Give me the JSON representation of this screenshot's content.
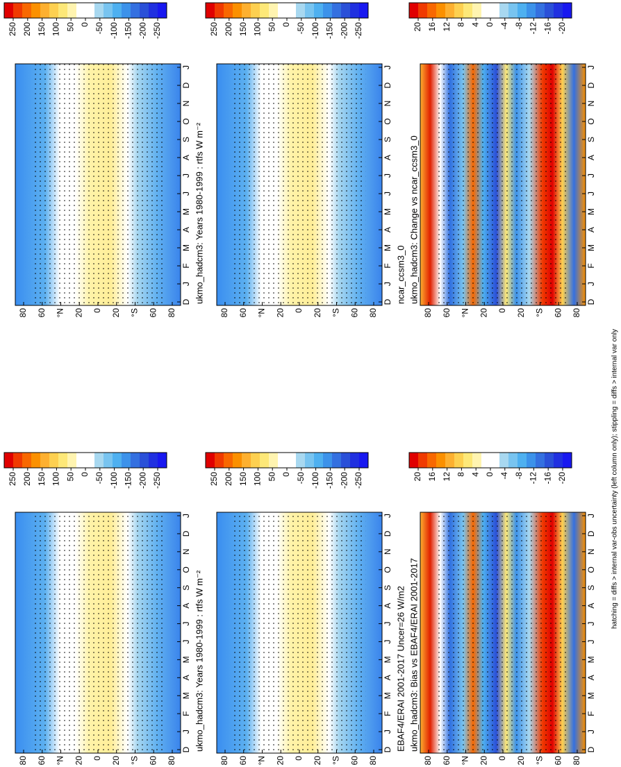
{
  "panels": [
    {
      "title": "ukmo_hadcm3: Years 1980-1999 : rtfs W m⁻²",
      "scale": "absolute"
    },
    {
      "title": "ncar_ccsm3_0",
      "scale": "absolute"
    },
    {
      "title": "ukmo_hadcm3: Change vs ncar_ccsm3_0",
      "scale": "difference"
    },
    {
      "title": "ukmo_hadcm3: Years 1980-1999 : rtfs W m⁻²",
      "scale": "absolute"
    },
    {
      "title": "EBAF4/ERAI 2001-2017 Uncer=26 W/m2",
      "scale": "absolute"
    },
    {
      "title": "ukmo_hadcm3: Bias vs EBAF4/ERAI 2001-2017",
      "scale": "difference"
    }
  ],
  "latitude_labels": [
    "80",
    "60",
    "°N",
    "20",
    "0",
    "20",
    "°S",
    "60",
    "80"
  ],
  "month_labels": [
    "D",
    "J",
    "F",
    "M",
    "A",
    "M",
    "J",
    "J",
    "A",
    "S",
    "O",
    "N",
    "D",
    "J"
  ],
  "colorbars": {
    "absolute": {
      "ticks": [
        250,
        200,
        150,
        100,
        50,
        0,
        -50,
        -100,
        -150,
        -200,
        -250
      ]
    },
    "difference": {
      "ticks": [
        20,
        16,
        12,
        8,
        4,
        0,
        -4,
        -8,
        -12,
        -16,
        -20
      ]
    }
  },
  "colorbar_colors": [
    "#e00000",
    "#f03a00",
    "#f86800",
    "#fb9000",
    "#fdb030",
    "#fdd050",
    "#fde878",
    "#fff4b0",
    "#ffffff",
    "#ffffff",
    "#a8d8f0",
    "#78c4f0",
    "#4eb0f0",
    "#3c92ea",
    "#3470e0",
    "#2a50d8",
    "#2030e0",
    "#1818f0"
  ],
  "footnote": "hatching = diffs > internal var-obs uncertainty (left column only); stippling = diffs > internal var only"
}
